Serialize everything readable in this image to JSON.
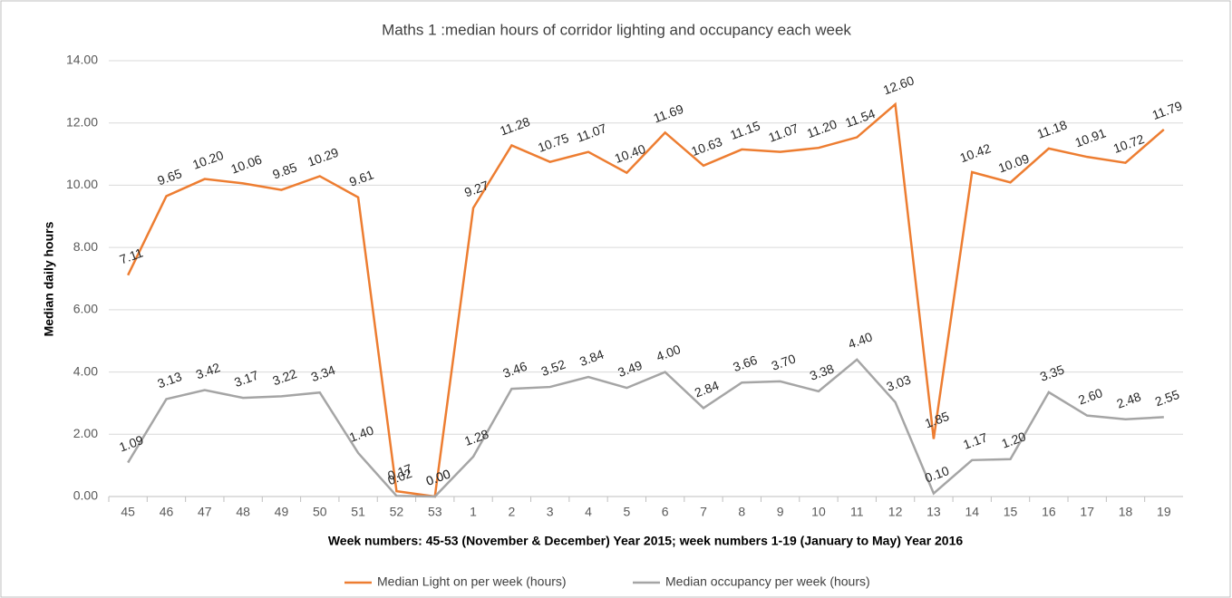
{
  "chart_data": {
    "type": "line",
    "title": "Maths 1 :median hours of corridor lighting and occupancy each week",
    "x_label": "Week numbers: 45-53 (November & December) Year 2015; week numbers 1-19 (January to May) Year 2016",
    "y_label": "Median daily hours",
    "categories": [
      "45",
      "46",
      "47",
      "48",
      "49",
      "50",
      "51",
      "52",
      "53",
      "1",
      "2",
      "3",
      "4",
      "5",
      "6",
      "7",
      "8",
      "9",
      "10",
      "11",
      "12",
      "13",
      "14",
      "15",
      "16",
      "17",
      "18",
      "19"
    ],
    "series": [
      {
        "name": "Median Light on per week (hours)",
        "color": "#ed7d31",
        "values": [
          7.11,
          9.65,
          10.2,
          10.06,
          9.85,
          10.29,
          9.61,
          0.17,
          0,
          9.27,
          11.28,
          10.75,
          11.07,
          10.4,
          11.69,
          10.63,
          11.15,
          11.07,
          11.2,
          11.54,
          12.6,
          1.85,
          10.42,
          10.09,
          11.18,
          10.91,
          10.72,
          11.79
        ],
        "value_labels": [
          "7.11",
          "9.65",
          "10.20",
          "10.06",
          "9.85",
          "10.29",
          "9.61",
          "0.17",
          "0.00",
          "9.27",
          "11.28",
          "10.75",
          "11.07",
          "10.40",
          "11.69",
          "10.63",
          "11.15",
          "11.07",
          "11.20",
          "11.54",
          "12.60",
          "1.85",
          "10.42",
          "10.09",
          "11.18",
          "10.91",
          "10.72",
          "11.79"
        ]
      },
      {
        "name": "Median occupancy per week (hours)",
        "color": "#a5a5a5",
        "values": [
          1.09,
          3.13,
          3.42,
          3.17,
          3.22,
          3.34,
          1.4,
          0.02,
          0,
          1.28,
          3.46,
          3.52,
          3.84,
          3.49,
          4,
          2.84,
          3.66,
          3.7,
          3.38,
          4.4,
          3.03,
          0.1,
          1.17,
          1.2,
          3.35,
          2.6,
          2.48,
          2.55
        ],
        "value_labels": [
          "1.09",
          "3.13",
          "3.42",
          "3.17",
          "3.22",
          "3.34",
          "1.40",
          "0.02",
          "0.00",
          "1.28",
          "3.46",
          "3.52",
          "3.84",
          "3.49",
          "4.00",
          "2.84",
          "3.66",
          "3.70",
          "3.38",
          "4.40",
          "3.03",
          "0.10",
          "1.17",
          "1.20",
          "3.35",
          "2.60",
          "2.48",
          "2.55"
        ]
      }
    ],
    "ylim": [
      0,
      14
    ],
    "yticks": [
      {
        "value": 0,
        "label": "0.00"
      },
      {
        "value": 2,
        "label": "2.00"
      },
      {
        "value": 4,
        "label": "4.00"
      },
      {
        "value": 6,
        "label": "6.00"
      },
      {
        "value": 8,
        "label": "8.00"
      },
      {
        "value": 10,
        "label": "10.00"
      },
      {
        "value": 12,
        "label": "12.00"
      },
      {
        "value": 14,
        "label": "14.00"
      }
    ],
    "grid": true,
    "legend": "bottom"
  }
}
